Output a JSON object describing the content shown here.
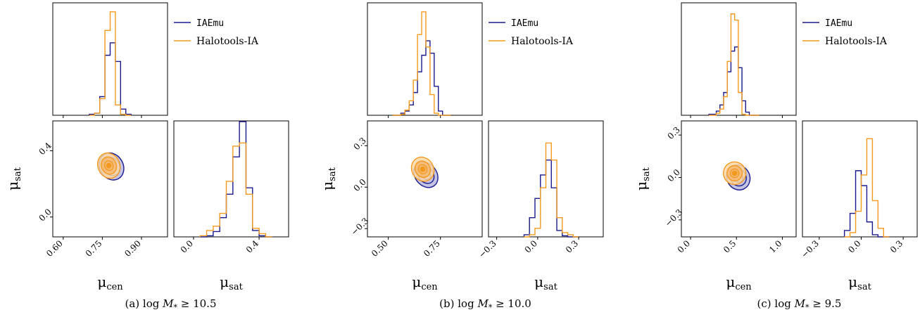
{
  "colors": {
    "iaemu": "#1a1a8e",
    "halotools": "#f39a1e",
    "halotools_fill": "#fbd8a8",
    "iaemu_fill": "#b8b8de"
  },
  "legend": [
    "IAEmu",
    "Halotools-IA"
  ],
  "chart_data": [
    {
      "type": "corner",
      "caption": "(a) log M* ≥ 10.5",
      "xlabel_cen": "μcen",
      "xlabel_sat": "μsat",
      "ylabel": "μsat",
      "cen_range": [
        0.56,
        1.0
      ],
      "sat_range": [
        -0.12,
        0.58
      ],
      "cen_ticks": [
        "0.60",
        "0.75",
        "0.90"
      ],
      "sat_ticks": [
        "0.0",
        "0.4"
      ],
      "sat_ticks_bottom": [
        "0.0",
        "0.4"
      ],
      "hist_cen": {
        "edges": [
          0.7,
          0.72,
          0.74,
          0.76,
          0.78,
          0.8,
          0.82,
          0.84,
          0.86
        ],
        "iaemu": [
          0.01,
          0.02,
          0.18,
          0.58,
          0.7,
          0.52,
          0.06,
          0.01
        ],
        "halotools": [
          0.0,
          0.02,
          0.16,
          0.82,
          1.0,
          0.1,
          0.01,
          0.0
        ]
      },
      "hist_sat": {
        "edges": [
          0.04,
          0.08,
          0.12,
          0.16,
          0.2,
          0.24,
          0.28,
          0.32,
          0.36,
          0.4,
          0.44,
          0.48
        ],
        "iaemu": [
          0.0,
          0.01,
          0.05,
          0.18,
          0.4,
          0.75,
          1.15,
          0.46,
          0.06,
          0.01,
          0.0
        ],
        "halotools": [
          0.01,
          0.06,
          0.1,
          0.22,
          0.52,
          0.85,
          0.88,
          0.4,
          0.08,
          0.03,
          0.0
        ]
      },
      "contour_iaemu": {
        "cx": 0.785,
        "cy": 0.305,
        "sx": 0.045,
        "sy": 0.085,
        "rot": -30
      },
      "contour_halotools": {
        "cx": 0.775,
        "cy": 0.31,
        "sx": 0.042,
        "sy": 0.078,
        "rot": -22
      }
    },
    {
      "type": "corner",
      "caption": "(b) log M* ≥ 10.0",
      "xlabel_cen": "μcen",
      "xlabel_sat": "μsat",
      "ylabel": "μsat",
      "cen_range": [
        0.4,
        0.95
      ],
      "sat_range": [
        -0.36,
        0.48
      ],
      "cen_ticks": [
        "0.50",
        "0.75"
      ],
      "sat_ticks": [
        "−0.3",
        "0.0",
        "0.3"
      ],
      "sat_ticks_bottom": [
        "−0.3",
        "0.0",
        "0.3"
      ],
      "hist_cen": {
        "edges": [
          0.52,
          0.56,
          0.58,
          0.6,
          0.62,
          0.64,
          0.66,
          0.68,
          0.7,
          0.72,
          0.74,
          0.76,
          0.8
        ],
        "iaemu": [
          0.0,
          0.02,
          0.04,
          0.1,
          0.22,
          0.42,
          0.58,
          0.72,
          0.6,
          0.28,
          0.04,
          0.0
        ],
        "halotools": [
          0.0,
          0.01,
          0.05,
          0.14,
          0.34,
          0.78,
          1.0,
          0.66,
          0.2,
          0.02,
          0.0,
          0.0
        ]
      },
      "hist_sat": {
        "edges": [
          -0.1,
          -0.06,
          -0.02,
          0.02,
          0.06,
          0.1,
          0.14,
          0.18,
          0.22,
          0.26,
          0.3
        ],
        "iaemu": [
          0.02,
          0.18,
          0.36,
          0.58,
          0.72,
          0.46,
          0.06,
          0.01,
          0.0,
          0.0
        ],
        "halotools": [
          0.0,
          0.02,
          0.08,
          0.46,
          0.88,
          0.72,
          0.18,
          0.04,
          0.02,
          0.0
        ]
      },
      "contour_iaemu": {
        "cx": 0.68,
        "cy": 0.09,
        "sx": 0.052,
        "sy": 0.1,
        "rot": -38
      },
      "contour_halotools": {
        "cx": 0.665,
        "cy": 0.13,
        "sx": 0.052,
        "sy": 0.09,
        "rot": -30
      }
    },
    {
      "type": "corner",
      "caption": "(c) log M* ≥ 9.5",
      "xlabel_cen": "μcen",
      "xlabel_sat": "μsat",
      "ylabel": "μsat",
      "cen_range": [
        -0.1,
        1.15
      ],
      "sat_range": [
        -0.42,
        0.4
      ],
      "cen_ticks": [
        "0.0",
        "0.5",
        "1.0"
      ],
      "sat_ticks": [
        "−0.3",
        "0.0",
        "0.3"
      ],
      "sat_ticks_bottom": [
        "−0.3",
        "0.0",
        "0.3"
      ],
      "hist_cen": {
        "edges": [
          0.2,
          0.28,
          0.32,
          0.36,
          0.4,
          0.44,
          0.48,
          0.52,
          0.56,
          0.6,
          0.64,
          0.68,
          0.75
        ],
        "iaemu": [
          0.01,
          0.04,
          0.1,
          0.22,
          0.42,
          0.62,
          0.66,
          0.46,
          0.14,
          0.03,
          0.0,
          0.0
        ],
        "halotools": [
          0.0,
          0.02,
          0.06,
          0.18,
          0.52,
          0.98,
          0.92,
          0.22,
          0.01,
          0.0,
          0.0,
          0.0
        ]
      },
      "hist_sat": {
        "edges": [
          -0.12,
          -0.08,
          -0.04,
          0.0,
          0.04,
          0.08,
          0.12,
          0.16,
          0.2
        ],
        "iaemu": [
          0.06,
          0.22,
          0.62,
          0.48,
          0.14,
          0.02,
          0.0,
          0.0
        ],
        "halotools": [
          0.0,
          0.04,
          0.24,
          0.58,
          0.92,
          0.34,
          0.08,
          0.0
        ]
      },
      "contour_iaemu": {
        "cx": 0.52,
        "cy": 0.0,
        "sx": 0.125,
        "sy": 0.09,
        "rot": -28
      },
      "contour_halotools": {
        "cx": 0.48,
        "cy": 0.03,
        "sx": 0.122,
        "sy": 0.08,
        "rot": -22
      }
    }
  ]
}
